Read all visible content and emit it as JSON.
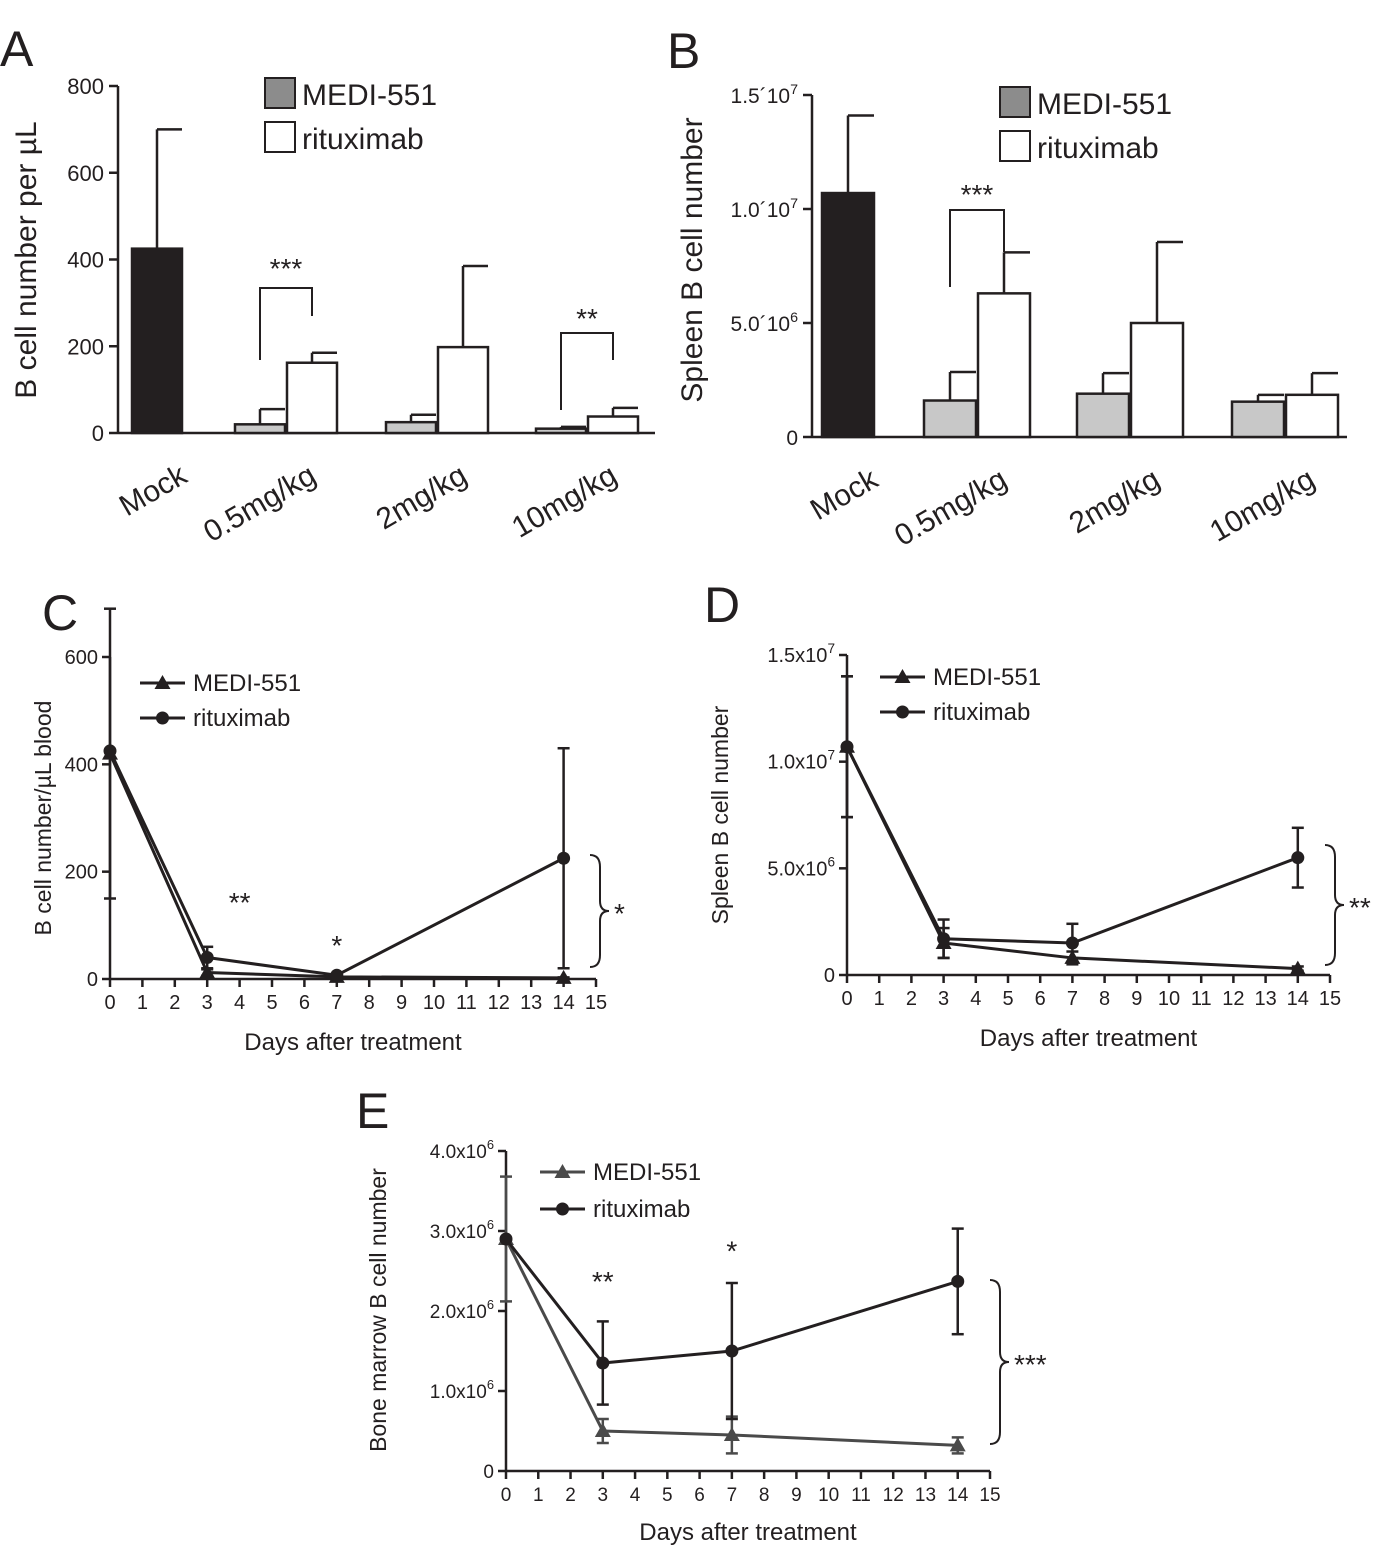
{
  "panels": [
    {
      "id": "A",
      "panel_label": "A",
      "chart_data": {
        "type": "bar",
        "ylabel": "B cell number per µL",
        "ylim": [
          0,
          800
        ],
        "yticks": [
          "0",
          "200",
          "400",
          "600",
          "800"
        ],
        "categories": [
          "Mock",
          "0.5mg/kg",
          "2mg/kg",
          "10mg/kg"
        ],
        "legend": [
          {
            "name": "MEDI-551",
            "color": "#8c8c8c"
          },
          {
            "name": "rituximab",
            "color": "#ffffff"
          }
        ],
        "bars": [
          {
            "category": "Mock",
            "series": "Mock",
            "value": 425,
            "err": 700,
            "color": "#231f20"
          },
          {
            "category": "0.5mg/kg",
            "series": "MEDI-551",
            "value": 20,
            "err": 55,
            "color": "#c8c8c8"
          },
          {
            "category": "0.5mg/kg",
            "series": "rituximab",
            "value": 162,
            "err": 185,
            "color": "#ffffff"
          },
          {
            "category": "2mg/kg",
            "series": "MEDI-551",
            "value": 25,
            "err": 42,
            "color": "#c8c8c8"
          },
          {
            "category": "2mg/kg",
            "series": "rituximab",
            "value": 198,
            "err": 385,
            "color": "#ffffff"
          },
          {
            "category": "10mg/kg",
            "series": "MEDI-551",
            "value": 10,
            "err": 14,
            "color": "#c8c8c8"
          },
          {
            "category": "10mg/kg",
            "series": "rituximab",
            "value": 38,
            "err": 58,
            "color": "#ffffff"
          }
        ],
        "significance": [
          {
            "category": "0.5mg/kg",
            "label": "***"
          },
          {
            "category": "10mg/kg",
            "label": "**"
          }
        ]
      }
    },
    {
      "id": "B",
      "panel_label": "B",
      "chart_data": {
        "type": "bar",
        "ylabel": "Spleen B cell number",
        "ylim": [
          0,
          15000000
        ],
        "yticks": [
          {
            "value": 0,
            "base": "0",
            "exp": ""
          },
          {
            "value": 5000000,
            "base": "5.0´10",
            "exp": "6"
          },
          {
            "value": 10000000,
            "base": "1.0´10",
            "exp": "7"
          },
          {
            "value": 15000000,
            "base": "1.5´10",
            "exp": "7"
          }
        ],
        "categories": [
          "Mock",
          "0.5mg/kg",
          "2mg/kg",
          "10mg/kg"
        ],
        "legend": [
          {
            "name": "MEDI-551",
            "color": "#8c8c8c"
          },
          {
            "name": "rituximab",
            "color": "#ffffff"
          }
        ],
        "bars": [
          {
            "category": "Mock",
            "series": "Mock",
            "value": 10700000,
            "err": 14100000,
            "color": "#231f20"
          },
          {
            "category": "0.5mg/kg",
            "series": "MEDI-551",
            "value": 1600000,
            "err": 2850000,
            "color": "#c8c8c8"
          },
          {
            "category": "0.5mg/kg",
            "series": "rituximab",
            "value": 6300000,
            "err": 8100000,
            "color": "#ffffff"
          },
          {
            "category": "2mg/kg",
            "series": "MEDI-551",
            "value": 1900000,
            "err": 2800000,
            "color": "#c8c8c8"
          },
          {
            "category": "2mg/kg",
            "series": "rituximab",
            "value": 5000000,
            "err": 8550000,
            "color": "#ffffff"
          },
          {
            "category": "10mg/kg",
            "series": "MEDI-551",
            "value": 1550000,
            "err": 1850000,
            "color": "#c8c8c8"
          },
          {
            "category": "10mg/kg",
            "series": "rituximab",
            "value": 1850000,
            "err": 2800000,
            "color": "#ffffff"
          }
        ],
        "significance": [
          {
            "category": "0.5mg/kg",
            "label": "***"
          }
        ]
      }
    },
    {
      "id": "C",
      "panel_label": "C",
      "chart_data": {
        "type": "line",
        "xlabel": "Days after treatment",
        "ylabel": "B cell number/µL blood",
        "xlim": [
          0,
          15
        ],
        "ylim": [
          0,
          600
        ],
        "xticks": [
          "0",
          "1",
          "2",
          "3",
          "4",
          "5",
          "6",
          "7",
          "8",
          "9",
          "10",
          "11",
          "12",
          "13",
          "14",
          "15"
        ],
        "yticks": [
          {
            "value": 0,
            "base": "0",
            "exp": ""
          },
          {
            "value": 200,
            "base": "200",
            "exp": ""
          },
          {
            "value": 400,
            "base": "400",
            "exp": ""
          },
          {
            "value": 600,
            "base": "600",
            "exp": ""
          }
        ],
        "series": [
          {
            "name": "MEDI-551",
            "marker": "triangle",
            "color": "#231f20",
            "x": [
              0,
              3,
              7,
              14
            ],
            "y": [
              420,
              12,
              4,
              2
            ],
            "err": [
              270,
              6,
              2,
              1
            ]
          },
          {
            "name": "rituximab",
            "marker": "circle",
            "color": "#231f20",
            "x": [
              0,
              3,
              7,
              14
            ],
            "y": [
              425,
              40,
              7,
              225
            ],
            "err": [
              0,
              20,
              2,
              205
            ]
          }
        ],
        "annotations": [
          {
            "x": 4,
            "y": 125,
            "label": "**"
          },
          {
            "x": 7,
            "y": 45,
            "label": "*"
          }
        ],
        "brace_label": "*"
      }
    },
    {
      "id": "D",
      "panel_label": "D",
      "chart_data": {
        "type": "line",
        "xlabel": "Days after treatment",
        "ylabel": "Spleen B cell number",
        "xlim": [
          0,
          15
        ],
        "ylim": [
          0,
          15000000
        ],
        "xticks": [
          "0",
          "1",
          "2",
          "3",
          "4",
          "5",
          "6",
          "7",
          "8",
          "9",
          "10",
          "11",
          "12",
          "13",
          "14",
          "15"
        ],
        "yticks": [
          {
            "value": 0,
            "base": "0",
            "exp": ""
          },
          {
            "value": 5000000,
            "base": "5.0x10",
            "exp": "6"
          },
          {
            "value": 10000000,
            "base": "1.0x10",
            "exp": "7"
          },
          {
            "value": 15000000,
            "base": "1.5x10",
            "exp": "7"
          }
        ],
        "series": [
          {
            "name": "MEDI-551",
            "marker": "triangle",
            "color": "#231f20",
            "x": [
              0,
              3,
              7,
              14
            ],
            "y": [
              10700000,
              1500000,
              800000,
              300000
            ],
            "err": [
              3300000,
              700000,
              300000,
              100000
            ]
          },
          {
            "name": "rituximab",
            "marker": "circle",
            "color": "#231f20",
            "x": [
              0,
              3,
              7,
              14
            ],
            "y": [
              10700000,
              1700000,
              1500000,
              5500000
            ],
            "err": [
              3300000,
              900000,
              900000,
              1400000
            ]
          }
        ],
        "annotations": [],
        "brace_label": "**"
      }
    },
    {
      "id": "E",
      "panel_label": "E",
      "chart_data": {
        "type": "line",
        "xlabel": "Days after treatment",
        "ylabel": "Bone marrow B cell number",
        "xlim": [
          0,
          15
        ],
        "ylim": [
          0,
          4000000
        ],
        "xticks": [
          "0",
          "1",
          "2",
          "3",
          "4",
          "5",
          "6",
          "7",
          "8",
          "9",
          "10",
          "11",
          "12",
          "13",
          "14",
          "15"
        ],
        "yticks": [
          {
            "value": 0,
            "base": "0",
            "exp": ""
          },
          {
            "value": 1000000,
            "base": "1.0x10",
            "exp": "6"
          },
          {
            "value": 2000000,
            "base": "2.0x10",
            "exp": "6"
          },
          {
            "value": 3000000,
            "base": "3.0x10",
            "exp": "6"
          },
          {
            "value": 4000000,
            "base": "4.0x10",
            "exp": "6"
          }
        ],
        "series": [
          {
            "name": "MEDI-551",
            "marker": "triangle",
            "color": "#4a4a4a",
            "x": [
              0,
              3,
              7,
              14
            ],
            "y": [
              2900000,
              500000,
              450000,
              320000
            ],
            "err": [
              780000,
              150000,
              230000,
              100000
            ]
          },
          {
            "name": "rituximab",
            "marker": "circle",
            "color": "#231f20",
            "x": [
              0,
              3,
              7,
              14
            ],
            "y": [
              2900000,
              1350000,
              1500000,
              2370000
            ],
            "err": [
              0,
              520000,
              850000,
              660000
            ]
          }
        ],
        "annotations": [
          {
            "x": 3,
            "y": 2250000,
            "label": "**"
          },
          {
            "x": 7,
            "y": 2630000,
            "label": "*"
          }
        ],
        "brace_label": "***"
      }
    }
  ]
}
